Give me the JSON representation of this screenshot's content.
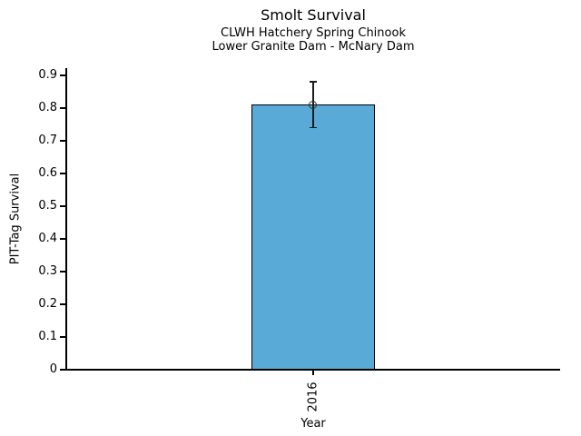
{
  "chart_data": {
    "type": "bar",
    "title": "Smolt Survival",
    "subtitle_line1": "CLWH Hatchery Spring Chinook",
    "subtitle_line2": "Lower Granite Dam - McNary Dam",
    "xlabel": "Year",
    "ylabel": "PIT-Tag Survival",
    "categories": [
      "2016"
    ],
    "values": [
      0.81
    ],
    "error_bars": [
      {
        "low": 0.74,
        "high": 0.88
      }
    ],
    "ylim": [
      0,
      0.92
    ],
    "yticks": [
      0,
      0.1,
      0.2,
      0.3,
      0.4,
      0.5,
      0.6,
      0.7,
      0.8,
      0.9
    ],
    "ytick_labels": [
      "0",
      "0.1",
      "0.2",
      "0.3",
      "0.4",
      "0.5",
      "0.6",
      "0.7",
      "0.8",
      "0.9"
    ],
    "bar_color": "#5AAAD8",
    "bar_edge_color": "#000000",
    "marker": "open-circle",
    "legend": "none",
    "grid": "off"
  }
}
